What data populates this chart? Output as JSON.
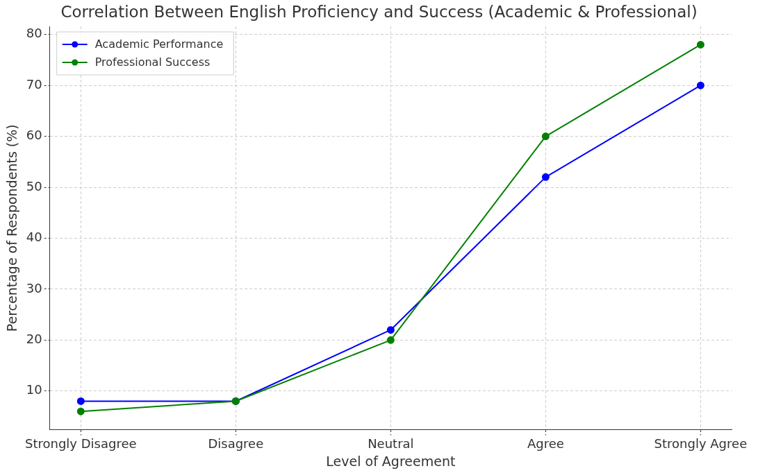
{
  "chart_data": {
    "type": "line",
    "title": "Correlation Between English Proficiency and Success (Academic & Professional)",
    "xlabel": "Level of Agreement",
    "ylabel": "Percentage of Respondents (%)",
    "categories": [
      "Strongly Disagree",
      "Disagree",
      "Neutral",
      "Agree",
      "Strongly Agree"
    ],
    "series": [
      {
        "name": "Academic Performance",
        "color": "#0000ff",
        "values": [
          8,
          8,
          22,
          52,
          70
        ]
      },
      {
        "name": "Professional Success",
        "color": "#008000",
        "values": [
          6,
          8,
          20,
          60,
          78
        ]
      }
    ],
    "ylim": [
      2.4,
      81.6
    ],
    "yticks": [
      10,
      20,
      30,
      40,
      50,
      60,
      70,
      80
    ],
    "grid": true,
    "legend": "top left",
    "marker": "circle",
    "line_style": "solid"
  }
}
